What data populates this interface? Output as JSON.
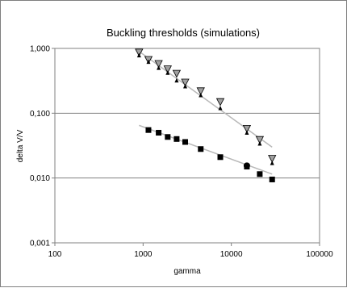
{
  "chart_data": {
    "type": "scatter",
    "title": "Buckling thresholds (simulations)",
    "xlabel": "gamma",
    "ylabel": "delta V/V",
    "x_scale": "log",
    "y_scale": "log",
    "xlim": [
      100,
      100000
    ],
    "ylim": [
      0.001,
      1
    ],
    "x_ticks": [
      "100",
      "1000",
      "10000",
      "100000"
    ],
    "y_ticks": [
      "0,001",
      "0,010",
      "0,100",
      "1,000"
    ],
    "grid": "horizontal major",
    "legend": "none",
    "series": [
      {
        "marker": "triangle-down",
        "color": "#a0a0a0",
        "x": [
          900,
          1150,
          1500,
          1900,
          2400,
          3000,
          4500,
          7500,
          15000,
          21000,
          29000
        ],
        "y": [
          0.87,
          0.67,
          0.58,
          0.48,
          0.41,
          0.3,
          0.22,
          0.15,
          0.058,
          0.039,
          0.02
        ]
      },
      {
        "marker": "triangle-up",
        "color": "#000000",
        "x": [
          900,
          1150,
          1500,
          1900,
          2400,
          3000,
          4500,
          7500,
          15000,
          21000,
          29000
        ],
        "y": [
          0.78,
          0.62,
          0.5,
          0.42,
          0.32,
          0.26,
          0.19,
          0.12,
          0.05,
          0.034,
          0.017
        ]
      },
      {
        "marker": "square",
        "color": "#000000",
        "x": [
          1150,
          1500,
          1900,
          2400,
          3000,
          4500,
          7500,
          15000,
          21000,
          29000
        ],
        "y": [
          0.055,
          0.05,
          0.043,
          0.04,
          0.036,
          0.028,
          0.021,
          0.015,
          0.0115,
          0.0095
        ]
      },
      {
        "marker": "circle",
        "color": "#000000",
        "x": [
          15000
        ],
        "y": [
          0.0155
        ]
      }
    ],
    "trendlines": [
      {
        "color": "#b8b8b8",
        "x": [
          900,
          29000
        ],
        "y": [
          0.9,
          0.03
        ]
      },
      {
        "color": "#b8b8b8",
        "x": [
          900,
          29000
        ],
        "y": [
          0.065,
          0.0115
        ]
      }
    ]
  }
}
